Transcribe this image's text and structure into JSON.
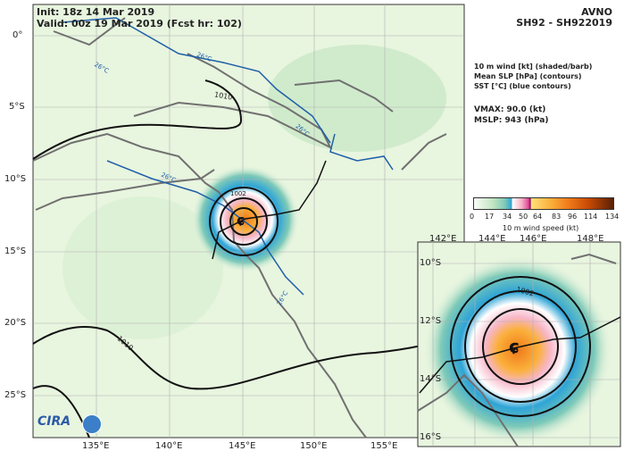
{
  "header": {
    "init": "Init:   18z 14 Mar 2019",
    "valid": "Valid: 00z 19 Mar 2019 (Fcst hr: 102)",
    "model": "AVNO",
    "storm": "SH92 - SH922019"
  },
  "legend": {
    "line1": "10 m wind [kt] (shaded/barb)",
    "line2": "Mean SLP [hPa] (contours)",
    "line3": "SST [°C] (blue contours)",
    "vmax": "VMAX:  90.0 (kt)",
    "mslp": "MSLP:  943 (hPa)"
  },
  "colorbar": {
    "ticks": [
      "0",
      "17",
      "34",
      "50",
      "64",
      "83",
      "96",
      "114",
      "134"
    ],
    "label": "10 m wind speed (kt)"
  },
  "main_map": {
    "lat_labels": [
      "0°",
      "5°S",
      "10°S",
      "15°S",
      "20°S",
      "25°S"
    ],
    "lon_labels": [
      "135°E",
      "140°E",
      "145°E",
      "150°E",
      "155°E"
    ],
    "contour_labels": [
      "1010",
      "1010",
      "1002",
      "26°C",
      "26°C",
      "26°C",
      "26°C",
      "26°C"
    ]
  },
  "inset_map": {
    "lat_labels": [
      "10°S",
      "12°S",
      "14°S",
      "16°S"
    ],
    "lon_labels": [
      "142°E",
      "144°E",
      "146°E",
      "148°E"
    ],
    "contour_labels": [
      "1002"
    ]
  },
  "logo": "CIRA",
  "colors": {
    "land_outline": "#707070",
    "slp_contour": "#111111",
    "sst_contour": "#1f5fa8",
    "background_low_wind": "#e6f4dc"
  }
}
